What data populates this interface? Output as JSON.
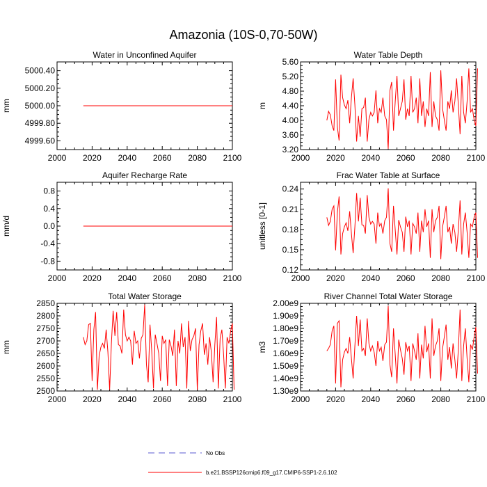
{
  "figure": {
    "title": "Amazonia (10S-0,70-50W)"
  },
  "legend": {
    "position": "bottom-center",
    "entries": [
      {
        "label": "No Obs",
        "color": "#5a5ad2",
        "style": "dashed"
      },
      {
        "label": "b.e21.BSSP126cmip6.f09_g17.CMIP6-SSP1-2.6.102",
        "color": "#ff0000",
        "style": "solid"
      }
    ]
  },
  "chart_data": [
    {
      "type": "line",
      "title": "Water in Unconfined Aquifer",
      "xlabel": "",
      "ylabel": "mm",
      "xlim": [
        2000,
        2100
      ],
      "ylim": [
        4999.5,
        5000.5
      ],
      "xticks": [
        2000,
        2020,
        2040,
        2060,
        2080,
        2100
      ],
      "xticklabels": [
        "2000",
        "2020",
        "2040",
        "2060",
        "2080",
        "2100"
      ],
      "yticks": [
        4999.6,
        4999.8,
        5000.0,
        5000.2,
        5000.4
      ],
      "yticklabels": [
        "4999.60",
        "4999.80",
        "5000.00",
        "5000.20",
        "5000.40"
      ],
      "series": [
        {
          "name": "b.e21.BSSP126cmip6.f09_g17.CMIP6-SSP1-2.6.102",
          "x_start": 2015,
          "x_step": 1,
          "values": [
            5000,
            5000,
            5000,
            5000,
            5000,
            5000,
            5000,
            5000,
            5000,
            5000,
            5000,
            5000,
            5000,
            5000,
            5000,
            5000,
            5000,
            5000,
            5000,
            5000,
            5000,
            5000,
            5000,
            5000,
            5000,
            5000,
            5000,
            5000,
            5000,
            5000,
            5000,
            5000,
            5000,
            5000,
            5000,
            5000,
            5000,
            5000,
            5000,
            5000,
            5000,
            5000,
            5000,
            5000,
            5000,
            5000,
            5000,
            5000,
            5000,
            5000,
            5000,
            5000,
            5000,
            5000,
            5000,
            5000,
            5000,
            5000,
            5000,
            5000,
            5000,
            5000,
            5000,
            5000,
            5000,
            5000,
            5000,
            5000,
            5000,
            5000,
            5000,
            5000,
            5000,
            5000,
            5000,
            5000,
            5000,
            5000,
            5000,
            5000,
            5000,
            5000,
            5000,
            5000,
            5000,
            5000
          ]
        }
      ]
    },
    {
      "type": "line",
      "title": "Water Table Depth",
      "xlabel": "",
      "ylabel": "m",
      "xlim": [
        2000,
        2100
      ],
      "ylim": [
        3.2,
        5.6
      ],
      "xticks": [
        2000,
        2020,
        2040,
        2060,
        2080,
        2100
      ],
      "xticklabels": [
        "2000",
        "2020",
        "2040",
        "2060",
        "2080",
        "2100"
      ],
      "yticks": [
        3.2,
        3.6,
        4.0,
        4.4,
        4.8,
        5.2,
        5.6
      ],
      "yticklabels": [
        "3.20",
        "3.60",
        "4.00",
        "4.40",
        "4.80",
        "5.20",
        "5.60"
      ],
      "series": [
        {
          "name": "b.e21.BSSP126cmip6.f09_g17.CMIP6-SSP1-2.6.102",
          "x_start": 2015,
          "x_step": 1,
          "values": [
            4.0,
            4.25,
            4.15,
            3.85,
            3.72,
            5.12,
            3.82,
            3.45,
            5.25,
            4.62,
            4.42,
            4.32,
            4.55,
            3.92,
            4.62,
            5.15,
            4.42,
            3.42,
            4.12,
            3.55,
            4.32,
            4.35,
            4.62,
            3.42,
            4.02,
            4.22,
            4.12,
            4.22,
            4.82,
            3.92,
            4.32,
            4.22,
            4.62,
            4.12,
            4.02,
            3.22,
            4.82,
            5.05,
            3.72,
            4.52,
            5.22,
            4.12,
            4.32,
            4.52,
            5.12,
            4.02,
            4.32,
            4.12,
            5.22,
            4.22,
            4.32,
            4.62,
            3.92,
            5.15,
            4.12,
            4.52,
            3.82,
            4.32,
            4.12,
            5.32,
            3.82,
            4.52,
            4.12,
            4.02,
            3.72,
            5.37,
            4.32,
            4.02,
            3.72,
            4.52,
            4.32,
            4.82,
            4.22,
            4.52,
            5.15,
            4.42,
            3.62,
            5.22,
            4.22,
            3.92,
            4.52,
            5.42,
            4.22,
            4.32,
            4.02,
            3.85,
            5.42
          ]
        }
      ]
    },
    {
      "type": "line",
      "title": "Aquifer Recharge Rate",
      "xlabel": "",
      "ylabel": "mm/d",
      "xlim": [
        2000,
        2100
      ],
      "ylim": [
        -1.0,
        1.0
      ],
      "xticks": [
        2000,
        2020,
        2040,
        2060,
        2080,
        2100
      ],
      "xticklabels": [
        "2000",
        "2020",
        "2040",
        "2060",
        "2080",
        "2100"
      ],
      "yticks": [
        -0.8,
        -0.4,
        0.0,
        0.4,
        0.8
      ],
      "yticklabels": [
        "-0.8",
        "-0.4",
        "0.0",
        "0.4",
        "0.8"
      ],
      "series": [
        {
          "name": "b.e21.BSSP126cmip6.f09_g17.CMIP6-SSP1-2.6.102",
          "x_start": 2015,
          "x_step": 1,
          "values": [
            0,
            0,
            0,
            0,
            0,
            0,
            0,
            0,
            0,
            0,
            0,
            0,
            0,
            0,
            0,
            0,
            0,
            0,
            0,
            0,
            0,
            0,
            0,
            0,
            0,
            0,
            0,
            0,
            0,
            0,
            0,
            0,
            0,
            0,
            0,
            0,
            0,
            0,
            0,
            0,
            0,
            0,
            0,
            0,
            0,
            0,
            0,
            0,
            0,
            0,
            0,
            0,
            0,
            0,
            0,
            0,
            0,
            0,
            0,
            0,
            0,
            0,
            0,
            0,
            0,
            0,
            0,
            0,
            0,
            0,
            0,
            0,
            0,
            0,
            0,
            0,
            0,
            0,
            0,
            0,
            0,
            0,
            0,
            0,
            0,
            0
          ]
        }
      ]
    },
    {
      "type": "line",
      "title": "Frac Water Table at Surface",
      "xlabel": "",
      "ylabel": "unitless [0-1]",
      "xlim": [
        2000,
        2100
      ],
      "ylim": [
        0.12,
        0.25
      ],
      "xticks": [
        2000,
        2020,
        2040,
        2060,
        2080,
        2100
      ],
      "xticklabels": [
        "2000",
        "2020",
        "2040",
        "2060",
        "2080",
        "2100"
      ],
      "yticks": [
        0.12,
        0.15,
        0.18,
        0.21,
        0.24
      ],
      "yticklabels": [
        "0.12",
        "0.15",
        "0.18",
        "0.21",
        "0.24"
      ],
      "series": [
        {
          "name": "b.e21.BSSP126cmip6.f09_g17.CMIP6-SSP1-2.6.102",
          "x_start": 2015,
          "x_step": 1,
          "values": [
            0.198,
            0.186,
            0.192,
            0.21,
            0.215,
            0.149,
            0.205,
            0.229,
            0.143,
            0.174,
            0.184,
            0.19,
            0.178,
            0.207,
            0.174,
            0.145,
            0.184,
            0.234,
            0.192,
            0.227,
            0.187,
            0.186,
            0.174,
            0.231,
            0.198,
            0.188,
            0.192,
            0.188,
            0.159,
            0.205,
            0.185,
            0.189,
            0.174,
            0.193,
            0.198,
            0.241,
            0.159,
            0.147,
            0.215,
            0.179,
            0.143,
            0.194,
            0.184,
            0.176,
            0.147,
            0.199,
            0.184,
            0.193,
            0.143,
            0.189,
            0.184,
            0.174,
            0.205,
            0.147,
            0.193,
            0.176,
            0.21,
            0.184,
            0.193,
            0.138,
            0.21,
            0.176,
            0.193,
            0.198,
            0.215,
            0.136,
            0.184,
            0.198,
            0.215,
            0.176,
            0.184,
            0.159,
            0.188,
            0.176,
            0.147,
            0.179,
            0.223,
            0.143,
            0.188,
            0.205,
            0.176,
            0.138,
            0.188,
            0.184,
            0.198,
            0.205,
            0.138
          ]
        }
      ]
    },
    {
      "type": "line",
      "title": "Total Water Storage",
      "xlabel": "",
      "ylabel": "mm",
      "xlim": [
        2000,
        2100
      ],
      "ylim": [
        2500,
        2850
      ],
      "xticks": [
        2000,
        2020,
        2040,
        2060,
        2080,
        2100
      ],
      "xticklabels": [
        "2000",
        "2020",
        "2040",
        "2060",
        "2080",
        "2100"
      ],
      "yticks": [
        2500,
        2550,
        2600,
        2650,
        2700,
        2750,
        2800,
        2850
      ],
      "yticklabels": [
        "2500",
        "2550",
        "2600",
        "2650",
        "2700",
        "2750",
        "2800",
        "2850"
      ],
      "series": [
        {
          "name": "b.e21.BSSP126cmip6.f09_g17.CMIP6-SSP1-2.6.102",
          "x_start": 2015,
          "x_step": 1,
          "values": [
            2715,
            2685,
            2700,
            2765,
            2770,
            2540,
            2745,
            2815,
            2505,
            2640,
            2675,
            2690,
            2670,
            2745,
            2655,
            2505,
            2690,
            2820,
            2720,
            2815,
            2685,
            2680,
            2650,
            2825,
            2725,
            2700,
            2715,
            2700,
            2605,
            2740,
            2690,
            2700,
            2630,
            2710,
            2725,
            2845,
            2605,
            2535,
            2765,
            2660,
            2510,
            2725,
            2690,
            2650,
            2540,
            2720,
            2690,
            2705,
            2520,
            2705,
            2680,
            2640,
            2745,
            2520,
            2700,
            2650,
            2770,
            2675,
            2715,
            2510,
            2780,
            2660,
            2705,
            2720,
            2750,
            2505,
            2685,
            2740,
            2770,
            2645,
            2690,
            2605,
            2715,
            2655,
            2535,
            2685,
            2795,
            2510,
            2710,
            2745,
            2645,
            2510,
            2715,
            2690,
            2740,
            2770,
            2505
          ]
        }
      ]
    },
    {
      "type": "line",
      "title": "River Channel Total Water Storage",
      "xlabel": "",
      "ylabel": "m3",
      "xlim": [
        2000,
        2100
      ],
      "ylim": [
        1300000000.0,
        2000000000.0
      ],
      "xticks": [
        2000,
        2020,
        2040,
        2060,
        2080,
        2100
      ],
      "xticklabels": [
        "2000",
        "2020",
        "2040",
        "2060",
        "2080",
        "2100"
      ],
      "yticks": [
        1300000000.0,
        1400000000.0,
        1500000000.0,
        1600000000.0,
        1700000000.0,
        1800000000.0,
        1900000000.0,
        2000000000.0
      ],
      "yticklabels": [
        "1.30e9",
        "1.40e9",
        "1.50e9",
        "1.60e9",
        "1.70e9",
        "1.80e9",
        "1.90e9",
        "2.00e9"
      ],
      "series": [
        {
          "name": "b.e21.BSSP126cmip6.f09_g17.CMIP6-SSP1-2.6.102",
          "x_start": 2015,
          "x_step": 1,
          "values": [
            1620000000.0,
            1640000000.0,
            1670000000.0,
            1780000000.0,
            1820000000.0,
            1360000000.0,
            1840000000.0,
            1860000000.0,
            1330000000.0,
            1550000000.0,
            1610000000.0,
            1640000000.0,
            1600000000.0,
            1730000000.0,
            1560000000.0,
            1400000000.0,
            1660000000.0,
            1900000000.0,
            1660000000.0,
            1870000000.0,
            1620000000.0,
            1640000000.0,
            1580000000.0,
            1880000000.0,
            1680000000.0,
            1620000000.0,
            1660000000.0,
            1610000000.0,
            1500000000.0,
            1700000000.0,
            1620000000.0,
            1650000000.0,
            1540000000.0,
            1670000000.0,
            1690000000.0,
            1980000000.0,
            1510000000.0,
            1410000000.0,
            1800000000.0,
            1590000000.0,
            1360000000.0,
            1710000000.0,
            1630000000.0,
            1560000000.0,
            1430000000.0,
            1690000000.0,
            1620000000.0,
            1660000000.0,
            1380000000.0,
            1680000000.0,
            1620000000.0,
            1550000000.0,
            1760000000.0,
            1400000000.0,
            1670000000.0,
            1560000000.0,
            1820000000.0,
            1610000000.0,
            1680000000.0,
            1400000000.0,
            1880000000.0,
            1580000000.0,
            1660000000.0,
            1700000000.0,
            1800000000.0,
            1380000000.0,
            1640000000.0,
            1730000000.0,
            1830000000.0,
            1550000000.0,
            1650000000.0,
            1480000000.0,
            1680000000.0,
            1550000000.0,
            1400000000.0,
            1630000000.0,
            1950000000.0,
            1380000000.0,
            1660000000.0,
            1800000000.0,
            1560000000.0,
            1370000000.0,
            1670000000.0,
            1630000000.0,
            1730000000.0,
            1810000000.0,
            1440000000.0
          ]
        }
      ]
    }
  ]
}
